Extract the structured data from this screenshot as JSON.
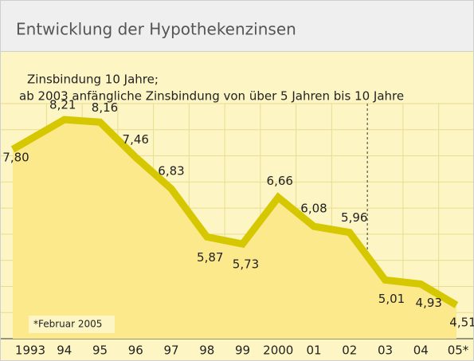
{
  "chart_data": {
    "type": "line",
    "title": "Entwicklung der Hypothekenzinsen",
    "subtitle": [
      "Zinsbindung 10 Jahre;",
      "ab 2003 anfängliche Zinsbindung von über 5 Jahren bis 10 Jahre"
    ],
    "note": "*Februar 2005",
    "categories": [
      "1993",
      "94",
      "95",
      "96",
      "97",
      "98",
      "99",
      "2000",
      "01",
      "02",
      "03",
      "04",
      "05*"
    ],
    "values": [
      7.8,
      8.21,
      8.16,
      7.46,
      6.83,
      5.87,
      5.73,
      6.66,
      6.08,
      5.96,
      5.01,
      4.93,
      4.51
    ],
    "value_labels": [
      "7,80",
      "8,21",
      "8,16",
      "7,46",
      "6,83",
      "5,87",
      "5,73",
      "6,66",
      "6,08",
      "5,96",
      "5,01",
      "4,93",
      "4,51"
    ],
    "color": "#d6c800",
    "ylim": [
      3.84,
      8.53
    ]
  }
}
